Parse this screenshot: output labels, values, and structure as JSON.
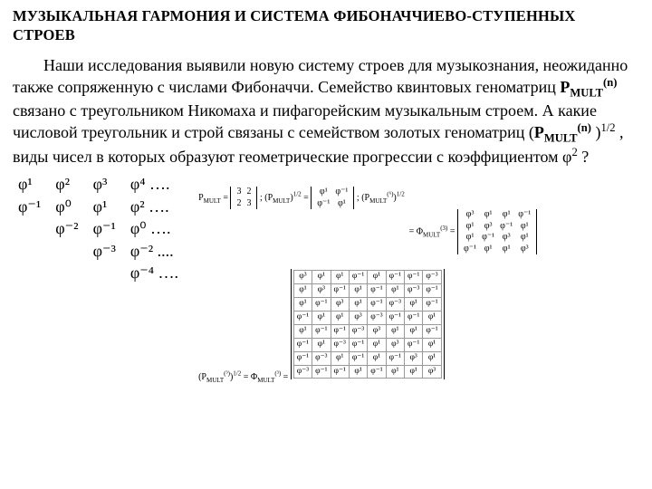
{
  "title": "МУЗЫКАЛЬНАЯ ГАРМОНИЯ И СИСТЕМА ФИБОНАЧЧИЕВО-СТУПЕННЫХ СТРОЕВ",
  "paragraph_parts": {
    "p1": "Наши исследования выявили новую систему строев для музыкознания, неожиданно также сопряженную с числами Фибоначчи. Семейство квинтовых геноматриц ",
    "p2": " связано с треугольником Никомаха и пифагорейским музыкальным строем. А какие числовой треугольник и строй связаны с семейством золотых геноматриц (",
    "p3": " , виды чисел в которых образуют геометрические прогрессии с коэффициентом φ",
    "p4": " ?",
    "pmult": "P",
    "mult_sub": "MULT",
    "n_sup": "(n)",
    "half": "1/2",
    "two": "2"
  },
  "triangle": {
    "rows": [
      [
        "φ¹",
        "φ²",
        "φ³",
        "φ⁴ …."
      ],
      [
        "φ⁻¹",
        "φ⁰",
        "φ¹",
        "φ² …."
      ],
      [
        "",
        "φ⁻²",
        "φ⁻¹",
        "φ⁰ …."
      ],
      [
        "",
        "",
        "φ⁻³",
        "φ⁻² ...."
      ],
      [
        "",
        "",
        "",
        "φ⁻⁴ …."
      ]
    ]
  },
  "formulas": {
    "line1_a": "P",
    "line1_b": "MULT",
    "line1_c": " = ",
    "m2": [
      [
        "3",
        "2"
      ],
      [
        "2",
        "3"
      ]
    ],
    "line1_d": " ;   (P",
    "line1_e": ")",
    "line1_f": " = ",
    "mphi": [
      [
        "φ¹",
        "φ⁻¹"
      ],
      [
        "φ⁻¹",
        "φ¹"
      ]
    ],
    "line1_g": " ;     ",
    "line1_h": "(P",
    "line1_i": "(⁶)",
    "line1_j": ")",
    "line1_k": " = Φ",
    "line1_l": "(3)",
    "line1_m": " = ",
    "m4": [
      [
        "φ³",
        "φ¹",
        "φ¹",
        "φ⁻¹"
      ],
      [
        "φ¹",
        "φ³",
        "φ⁻¹",
        "φ¹"
      ],
      [
        "φ¹",
        "φ⁻¹",
        "φ³",
        "φ¹"
      ],
      [
        "φ⁻¹",
        "φ¹",
        "φ¹",
        "φ³"
      ]
    ],
    "line2_a": "(P",
    "line2_b": "(³)",
    "line2_c": ")",
    "line2_d": " = Φ",
    "line2_e": "(³)",
    "line2_f": " = ",
    "m8": [
      [
        "φ³",
        "φ¹",
        "φ¹",
        "φ⁻¹",
        "φ¹",
        "φ⁻¹",
        "φ⁻¹",
        "φ⁻³"
      ],
      [
        "φ¹",
        "φ³",
        "φ⁻¹",
        "φ¹",
        "φ⁻¹",
        "φ¹",
        "φ⁻³",
        "φ⁻¹"
      ],
      [
        "φ¹",
        "φ⁻¹",
        "φ³",
        "φ¹",
        "φ⁻¹",
        "φ⁻³",
        "φ¹",
        "φ⁻¹"
      ],
      [
        "φ⁻¹",
        "φ¹",
        "φ¹",
        "φ³",
        "φ⁻³",
        "φ⁻¹",
        "φ⁻¹",
        "φ¹"
      ],
      [
        "φ¹",
        "φ⁻¹",
        "φ⁻¹",
        "φ⁻³",
        "φ³",
        "φ¹",
        "φ¹",
        "φ⁻¹"
      ],
      [
        "φ⁻¹",
        "φ¹",
        "φ⁻³",
        "φ⁻¹",
        "φ¹",
        "φ³",
        "φ⁻¹",
        "φ¹"
      ],
      [
        "φ⁻¹",
        "φ⁻³",
        "φ¹",
        "φ⁻¹",
        "φ¹",
        "φ⁻¹",
        "φ³",
        "φ¹"
      ],
      [
        "φ⁻³",
        "φ⁻¹",
        "φ⁻¹",
        "φ¹",
        "φ⁻¹",
        "φ¹",
        "φ¹",
        "φ³"
      ]
    ]
  },
  "colors": {
    "text": "#000000",
    "background": "#ffffff",
    "grid": "#999999"
  }
}
